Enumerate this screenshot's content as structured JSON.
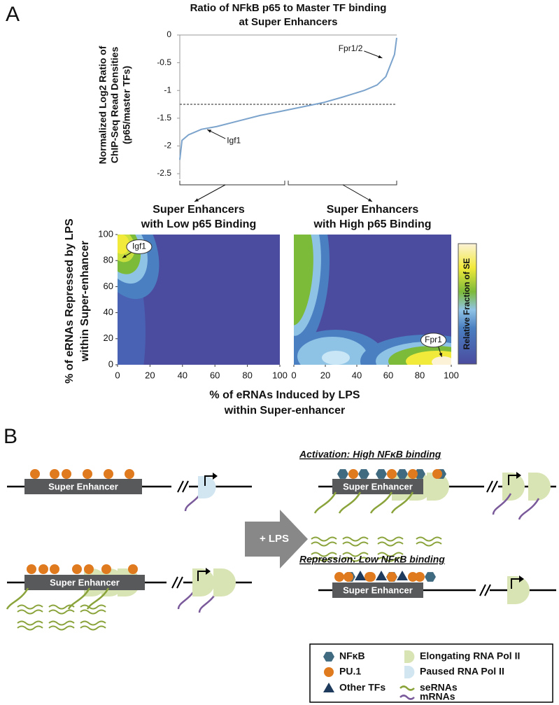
{
  "panel_labels": [
    "A",
    "B"
  ],
  "chart_data": [
    {
      "type": "line",
      "title": [
        "Ratio of NFkB p65 to Master TF binding",
        "at Super Enhancers"
      ],
      "y_label": [
        "Normalized Log2 Ratio of",
        "ChIP-Seq Read Densities",
        "(p65/master TFs)"
      ],
      "x": [
        0,
        1,
        4,
        10,
        17,
        27,
        37,
        46,
        56,
        66,
        75,
        85,
        91,
        95,
        97,
        99,
        100
      ],
      "values": [
        -2.25,
        -1.9,
        -1.8,
        -1.7,
        -1.65,
        -1.55,
        -1.45,
        -1.38,
        -1.3,
        -1.22,
        -1.12,
        -1.0,
        -0.9,
        -0.75,
        -0.55,
        -0.35,
        -0.05
      ],
      "color": "#7ba3cc",
      "xlim": [
        0,
        100
      ],
      "ylim": [
        -2.6,
        0
      ],
      "yticks": [
        0,
        -0.5,
        -1,
        -1.5,
        -2,
        -2.5
      ],
      "reference_line": -1.25,
      "annotations": [
        {
          "text": "Fpr1/2",
          "x": 94,
          "y": -0.44
        },
        {
          "text": "Igf1",
          "x": 12,
          "y": -1.68
        }
      ]
    },
    {
      "type": "heatmap",
      "title": [
        "Super Enhancers",
        "with Low p65 Binding"
      ],
      "xlim": [
        0,
        100
      ],
      "ylim": [
        0,
        100
      ],
      "xticks": [
        0,
        20,
        40,
        60,
        80,
        100
      ],
      "yticks": [
        0,
        20,
        40,
        60,
        80,
        100
      ],
      "annotations": [
        {
          "text": "Igf1",
          "x": 3,
          "y": 82
        }
      ]
    },
    {
      "type": "heatmap",
      "title": [
        "Super Enhancers",
        "with High p65 Binding"
      ],
      "xlim": [
        0,
        100
      ],
      "ylim": [
        0,
        100
      ],
      "xticks": [
        0,
        20,
        40,
        60,
        80,
        100
      ],
      "annotations": [
        {
          "text": "Fpr1",
          "x": 94,
          "y": 6
        }
      ],
      "colorbar_label": "Relative Fraction of SE"
    }
  ],
  "x_label": [
    "% of eRNAs Induced by LPS",
    "within Super-enhancer"
  ],
  "y_label": [
    "% of eRNAs Repressed by LPS",
    "within Super-enhancer"
  ],
  "diagram": {
    "super_enhancer": "Super Enhancer",
    "treatment": "+ LPS",
    "activation_title": "Activation: High NFκB binding",
    "repression_title": "Repression: Low NFκB binding",
    "legend": [
      "NFκB",
      "PU.1",
      "Other TFs",
      "seRNAs",
      "mRNAs",
      "Elongating RNA Pol II",
      "Paused RNA Pol II"
    ]
  }
}
